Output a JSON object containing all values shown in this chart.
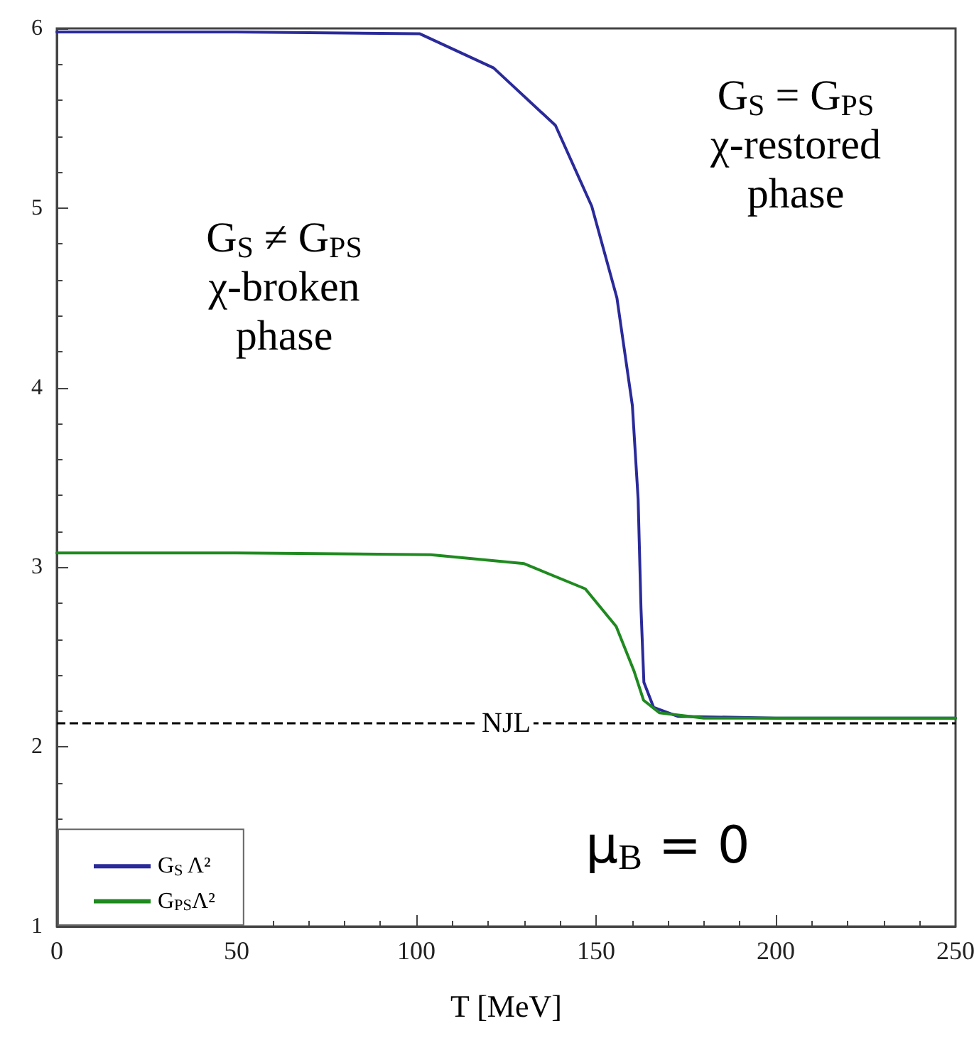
{
  "chart_data": {
    "type": "line",
    "xlabel": "T [MeV]",
    "xlim": [
      0,
      250
    ],
    "xticks": [
      0,
      50,
      100,
      150,
      200,
      250
    ],
    "ylim": [
      1,
      6
    ],
    "yticks": [
      1,
      2,
      3,
      4,
      5,
      6
    ],
    "grid": false,
    "legend": "bottom left",
    "marker": "none",
    "line_style": "solid",
    "series": [
      {
        "name": "G$_{S}$ Λ²",
        "color": "#2a2a9a",
        "x": [
          0,
          50,
          101,
          121.5,
          138.7,
          148.8,
          155.8,
          160.1,
          161.7,
          162.5,
          163.3,
          166,
          172.7,
          200,
          250
        ],
        "values": [
          5.98,
          5.98,
          5.97,
          5.78,
          5.46,
          5.01,
          4.5,
          3.9,
          3.38,
          2.77,
          2.36,
          2.22,
          2.17,
          2.16,
          2.16
        ]
      },
      {
        "name": "G$_{PS}$Λ²",
        "color": "#1f8a1f",
        "x": [
          0,
          50,
          104,
          130,
          147,
          155.6,
          160.6,
          163.2,
          167.6,
          180,
          250
        ],
        "values": [
          3.08,
          3.08,
          3.07,
          3.02,
          2.88,
          2.67,
          2.42,
          2.26,
          2.19,
          2.16,
          2.16
        ]
      }
    ],
    "ref_lines": [
      {
        "axis": "y",
        "value": 2.13,
        "label": "NJL",
        "color": "#000000",
        "line_style": "dashed"
      }
    ],
    "annotations": [
      "G$_{S}$ ≠ G$_{PS}$\nχ-broken\nphase",
      "G$_{S}$ = G$_{PS}$\nχ-restored\nphase",
      "μ$_{B}$ = 0"
    ]
  }
}
